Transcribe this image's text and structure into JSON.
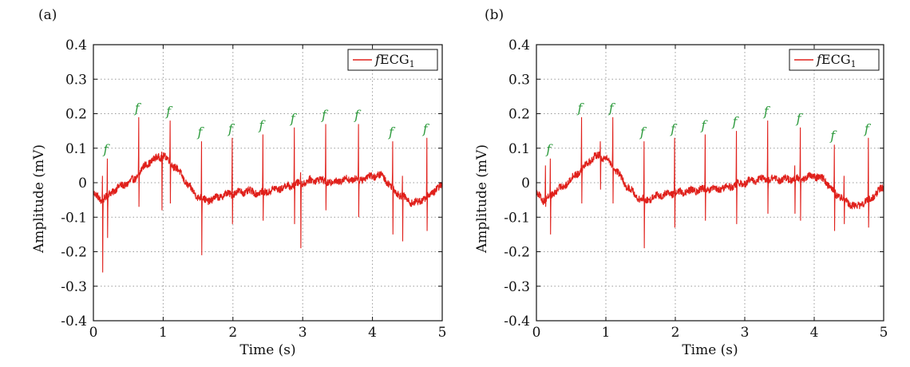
{
  "chart_data": [
    {
      "type": "line",
      "panel_label": "(a)",
      "xlabel": "Time (s)",
      "ylabel": "Amplitude (mV)",
      "xlim": [
        0,
        5
      ],
      "ylim": [
        -0.4,
        0.4
      ],
      "xticks": [
        "0",
        "1",
        "2",
        "3",
        "4",
        "5"
      ],
      "yticks": [
        "0.4",
        "0.3",
        "0.2",
        "0.1",
        "0",
        "-0.1",
        "-0.2",
        "-0.3",
        "-0.4"
      ],
      "grid": true,
      "legend": {
        "placement": "top-right",
        "entry": "fECG",
        "subscript": "1"
      },
      "series_color": "#e0201b",
      "marker_color": "#2e9b3e",
      "marker_label": "f",
      "baseline": [
        [
          0,
          -0.03
        ],
        [
          0.1,
          -0.05
        ],
        [
          0.2,
          -0.04
        ],
        [
          0.3,
          -0.02
        ],
        [
          0.4,
          -0.01
        ],
        [
          0.5,
          0.0
        ],
        [
          0.6,
          0.01
        ],
        [
          0.7,
          0.04
        ],
        [
          0.8,
          0.06
        ],
        [
          0.9,
          0.07
        ],
        [
          1.0,
          0.08
        ],
        [
          1.1,
          0.06
        ],
        [
          1.2,
          0.04
        ],
        [
          1.3,
          0.01
        ],
        [
          1.4,
          -0.02
        ],
        [
          1.5,
          -0.04
        ],
        [
          1.6,
          -0.05
        ],
        [
          1.7,
          -0.05
        ],
        [
          1.8,
          -0.04
        ],
        [
          1.9,
          -0.035
        ],
        [
          2.0,
          -0.03
        ],
        [
          2.2,
          -0.025
        ],
        [
          2.4,
          -0.03
        ],
        [
          2.6,
          -0.02
        ],
        [
          2.8,
          -0.01
        ],
        [
          3.0,
          0.0
        ],
        [
          3.2,
          0.01
        ],
        [
          3.4,
          0.0
        ],
        [
          3.6,
          0.01
        ],
        [
          3.8,
          0.01
        ],
        [
          4.0,
          0.02
        ],
        [
          4.15,
          0.02
        ],
        [
          4.3,
          -0.02
        ],
        [
          4.5,
          -0.05
        ],
        [
          4.6,
          -0.06
        ],
        [
          4.7,
          -0.05
        ],
        [
          4.8,
          -0.04
        ],
        [
          4.9,
          -0.02
        ],
        [
          5.0,
          -0.01
        ]
      ],
      "peaks": [
        {
          "t": 0.2,
          "top": 0.07,
          "bottom": -0.16,
          "marked": true
        },
        {
          "t": 0.65,
          "top": 0.19,
          "bottom": -0.07,
          "marked": true
        },
        {
          "t": 1.1,
          "top": 0.18,
          "bottom": -0.06,
          "marked": true
        },
        {
          "t": 1.55,
          "top": 0.12,
          "bottom": -0.21,
          "marked": true
        },
        {
          "t": 1.99,
          "top": 0.13,
          "bottom": -0.12,
          "marked": true
        },
        {
          "t": 2.43,
          "top": 0.14,
          "bottom": -0.11,
          "marked": true
        },
        {
          "t": 2.88,
          "top": 0.16,
          "bottom": -0.12,
          "marked": true
        },
        {
          "t": 3.33,
          "top": 0.17,
          "bottom": -0.08,
          "marked": true
        },
        {
          "t": 3.8,
          "top": 0.17,
          "bottom": -0.1,
          "marked": true
        },
        {
          "t": 4.29,
          "top": 0.12,
          "bottom": -0.15,
          "marked": true
        },
        {
          "t": 4.78,
          "top": 0.13,
          "bottom": -0.14,
          "marked": true
        },
        {
          "t": 0.13,
          "top": 0.02,
          "bottom": -0.26,
          "marked": false
        },
        {
          "t": 2.97,
          "top": 0.03,
          "bottom": -0.19,
          "marked": false
        },
        {
          "t": 0.98,
          "top": 0.09,
          "bottom": -0.08,
          "marked": false
        },
        {
          "t": 4.43,
          "top": 0.02,
          "bottom": -0.17,
          "marked": false
        }
      ]
    },
    {
      "type": "line",
      "panel_label": "(b)",
      "xlabel": "Time (s)",
      "ylabel": "Amplitude (mV)",
      "xlim": [
        0,
        5
      ],
      "ylim": [
        -0.4,
        0.4
      ],
      "xticks": [
        "0",
        "1",
        "2",
        "3",
        "4",
        "5"
      ],
      "yticks": [
        "0.4",
        "0.3",
        "0.2",
        "0.1",
        "0",
        "-0.1",
        "-0.2",
        "-0.3",
        "-0.4"
      ],
      "grid": true,
      "legend": {
        "placement": "top-right",
        "entry": "fECG",
        "subscript": "1"
      },
      "series_color": "#e0201b",
      "marker_color": "#2e9b3e",
      "marker_label": "f",
      "baseline": [
        [
          0,
          -0.03
        ],
        [
          0.1,
          -0.05
        ],
        [
          0.2,
          -0.04
        ],
        [
          0.3,
          -0.02
        ],
        [
          0.4,
          -0.01
        ],
        [
          0.5,
          0.01
        ],
        [
          0.6,
          0.03
        ],
        [
          0.7,
          0.05
        ],
        [
          0.8,
          0.07
        ],
        [
          0.9,
          0.08
        ],
        [
          1.0,
          0.07
        ],
        [
          1.1,
          0.05
        ],
        [
          1.2,
          0.02
        ],
        [
          1.3,
          -0.01
        ],
        [
          1.4,
          -0.03
        ],
        [
          1.5,
          -0.05
        ],
        [
          1.6,
          -0.05
        ],
        [
          1.7,
          -0.04
        ],
        [
          1.8,
          -0.035
        ],
        [
          2.0,
          -0.03
        ],
        [
          2.2,
          -0.025
        ],
        [
          2.4,
          -0.02
        ],
        [
          2.6,
          -0.02
        ],
        [
          2.8,
          -0.01
        ],
        [
          3.0,
          0.0
        ],
        [
          3.2,
          0.01
        ],
        [
          3.4,
          0.01
        ],
        [
          3.6,
          0.01
        ],
        [
          3.8,
          0.01
        ],
        [
          4.0,
          0.02
        ],
        [
          4.15,
          0.01
        ],
        [
          4.3,
          -0.03
        ],
        [
          4.5,
          -0.06
        ],
        [
          4.6,
          -0.07
        ],
        [
          4.7,
          -0.06
        ],
        [
          4.8,
          -0.05
        ],
        [
          4.9,
          -0.03
        ],
        [
          5.0,
          -0.01
        ]
      ],
      "peaks": [
        {
          "t": 0.2,
          "top": 0.07,
          "bottom": -0.15,
          "marked": true
        },
        {
          "t": 0.65,
          "top": 0.19,
          "bottom": -0.06,
          "marked": true
        },
        {
          "t": 1.1,
          "top": 0.19,
          "bottom": -0.06,
          "marked": true
        },
        {
          "t": 1.55,
          "top": 0.12,
          "bottom": -0.19,
          "marked": true
        },
        {
          "t": 1.99,
          "top": 0.13,
          "bottom": -0.13,
          "marked": true
        },
        {
          "t": 2.43,
          "top": 0.14,
          "bottom": -0.11,
          "marked": true
        },
        {
          "t": 2.88,
          "top": 0.15,
          "bottom": -0.12,
          "marked": true
        },
        {
          "t": 3.33,
          "top": 0.18,
          "bottom": -0.09,
          "marked": true
        },
        {
          "t": 3.8,
          "top": 0.16,
          "bottom": -0.11,
          "marked": true
        },
        {
          "t": 4.29,
          "top": 0.11,
          "bottom": -0.14,
          "marked": true
        },
        {
          "t": 4.78,
          "top": 0.13,
          "bottom": -0.13,
          "marked": true
        },
        {
          "t": 0.13,
          "top": 0.05,
          "bottom": -0.07,
          "marked": false
        },
        {
          "t": 3.72,
          "top": 0.05,
          "bottom": -0.09,
          "marked": false
        },
        {
          "t": 0.92,
          "top": 0.12,
          "bottom": -0.02,
          "marked": false
        },
        {
          "t": 4.43,
          "top": 0.02,
          "bottom": -0.12,
          "marked": false
        }
      ]
    }
  ]
}
